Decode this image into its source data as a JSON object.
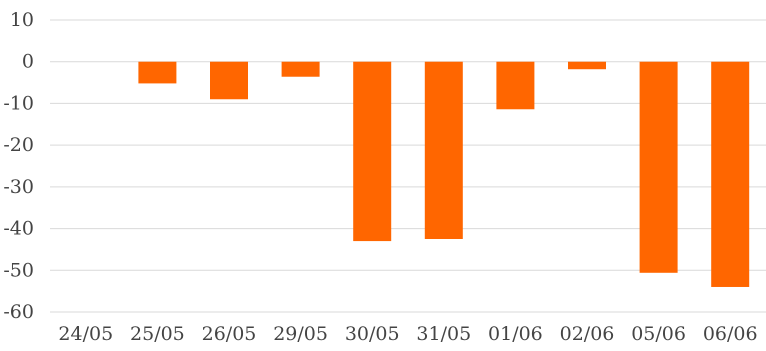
{
  "chart_data": {
    "type": "bar",
    "categories": [
      "24/05",
      "25/05",
      "26/05",
      "29/05",
      "30/05",
      "31/05",
      "01/06",
      "02/06",
      "05/06",
      "06/06"
    ],
    "values": [
      0,
      -5.2,
      -9,
      -3.6,
      -43,
      -42.5,
      -11.4,
      -1.8,
      -50.6,
      -54
    ],
    "ylim": [
      -60,
      10
    ],
    "yticks": [
      10,
      0,
      -10,
      -20,
      -30,
      -40,
      -50,
      -60
    ],
    "title": "",
    "xlabel": "",
    "ylabel": "",
    "grid": true,
    "bar_color": "#ff6600",
    "grid_color": "#d9d9d9"
  }
}
